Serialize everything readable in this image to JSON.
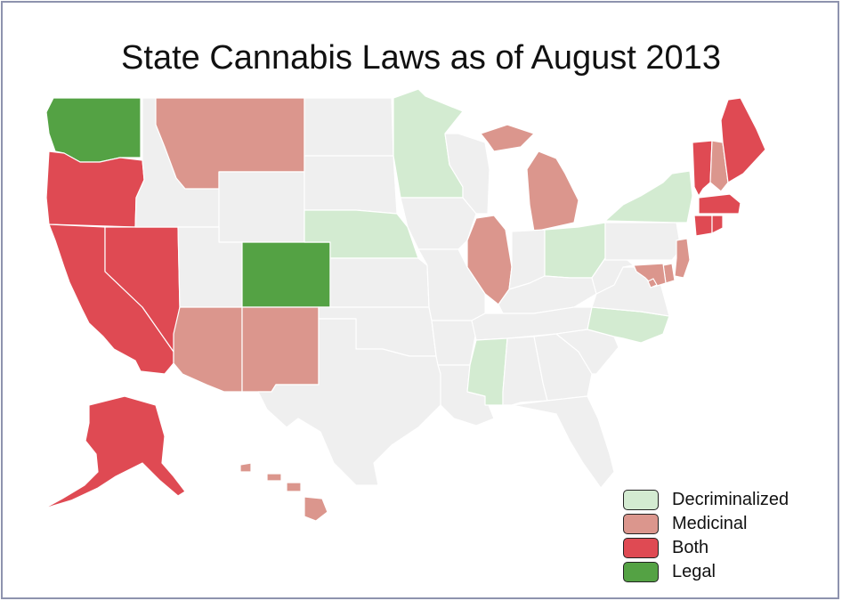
{
  "title": "State Cannabis Laws as of August 2013",
  "colors": {
    "decriminalized": "#d3ebd1",
    "medicinal": "#db968d",
    "both": "#df4a53",
    "legal": "#54a244",
    "none": "#efefef",
    "border": "#ffffff"
  },
  "legend": [
    {
      "label": "Decriminalized",
      "status": "decriminalized"
    },
    {
      "label": "Medicinal",
      "status": "medicinal"
    },
    {
      "label": "Both",
      "status": "both"
    },
    {
      "label": "Legal",
      "status": "legal"
    }
  ],
  "states": {
    "WA": "legal",
    "CO": "legal",
    "OR": "both",
    "CA": "both",
    "NV": "both",
    "AK": "both",
    "VT": "both",
    "ME": "both",
    "MA": "both",
    "CT": "both",
    "RI": "both",
    "MT": "medicinal",
    "AZ": "medicinal",
    "NM": "medicinal",
    "MI": "medicinal",
    "IL": "medicinal",
    "NH": "medicinal",
    "NJ": "medicinal",
    "DE": "medicinal",
    "MD": "medicinal",
    "DC": "medicinal",
    "HI": "medicinal",
    "MN": "decriminalized",
    "NE": "decriminalized",
    "OH": "decriminalized",
    "MS": "decriminalized",
    "NC": "decriminalized",
    "NY": "decriminalized",
    "ID": "none",
    "WY": "none",
    "UT": "none",
    "ND": "none",
    "SD": "none",
    "KS": "none",
    "OK": "none",
    "TX": "none",
    "IA": "none",
    "MO": "none",
    "AR": "none",
    "LA": "none",
    "WI": "none",
    "IN": "none",
    "KY": "none",
    "TN": "none",
    "AL": "none",
    "GA": "none",
    "FL": "none",
    "SC": "none",
    "VA": "none",
    "WV": "none",
    "PA": "none"
  }
}
